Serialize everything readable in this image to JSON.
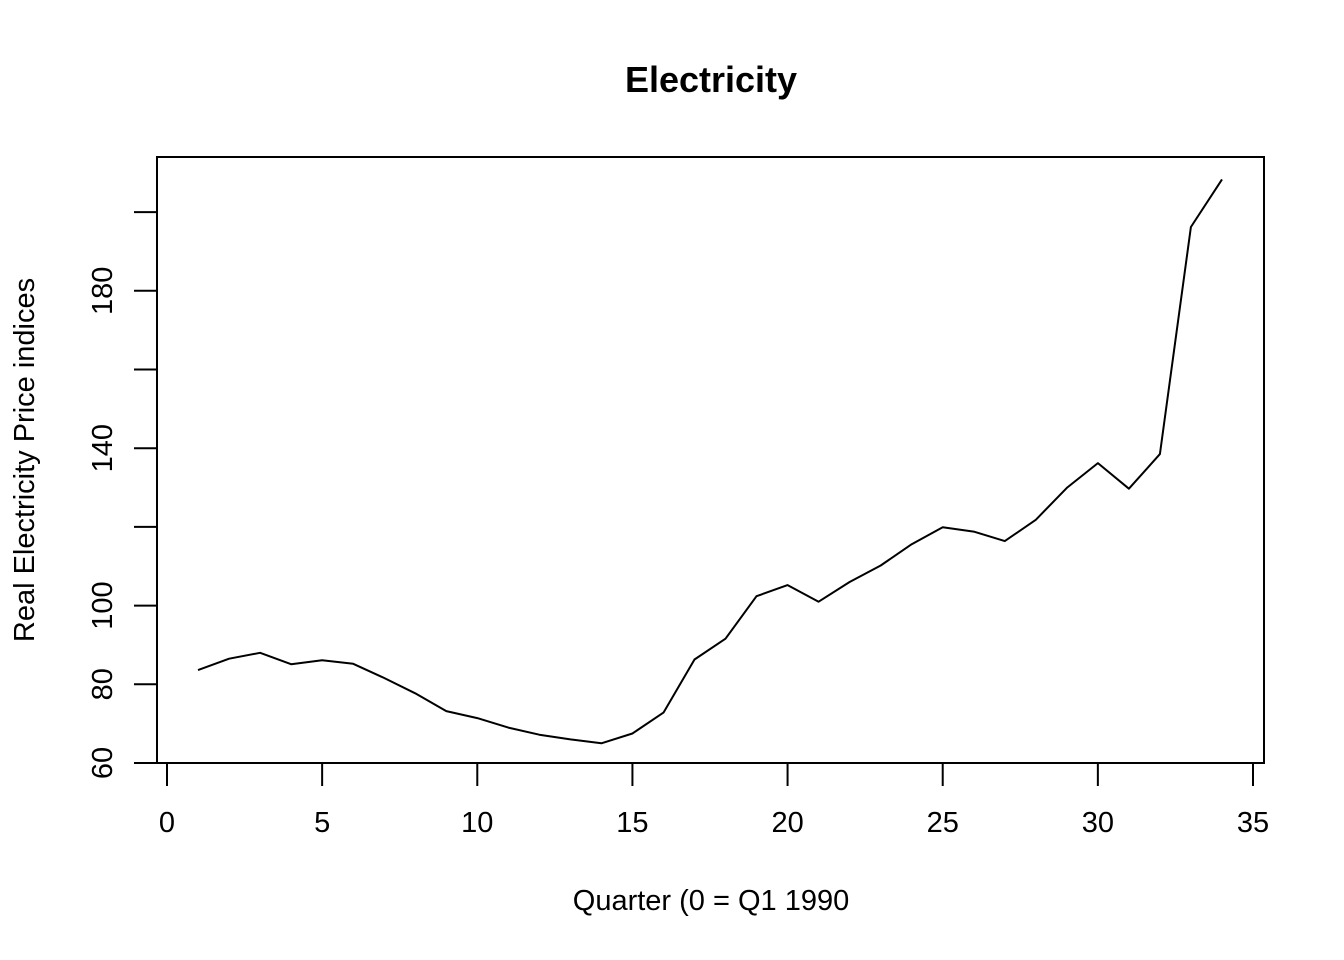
{
  "chart_data": {
    "type": "line",
    "title": "Electricity",
    "xlabel": "Quarter (0 = Q1 1990",
    "ylabel": "Real Electricity Price indices",
    "xlim": [
      0,
      35
    ],
    "ylim": [
      60,
      214
    ],
    "x_ticks": [
      0,
      5,
      10,
      15,
      20,
      25,
      30,
      35
    ],
    "y_ticks": [
      60,
      80,
      100,
      120,
      140,
      160,
      180,
      200
    ],
    "y_tick_labels": [
      "60",
      "80",
      "100",
      "",
      "140",
      "",
      "180",
      ""
    ],
    "grid": false,
    "legend": "none",
    "color": "#000000",
    "x": [
      1,
      2,
      3,
      4,
      5,
      6,
      7,
      8,
      9,
      10,
      11,
      12,
      13,
      14,
      15,
      16,
      17,
      18,
      19,
      20,
      21,
      22,
      23,
      24,
      25,
      26,
      27,
      28,
      29,
      30,
      31,
      32,
      33,
      34
    ],
    "values": [
      83.6,
      86.5,
      88.0,
      85.1,
      86.1,
      85.2,
      81.6,
      77.7,
      73.2,
      71.4,
      69.0,
      67.2,
      66.0,
      65.0,
      67.5,
      72.8,
      86.3,
      91.6,
      102.4,
      105.2,
      101.0,
      106.0,
      110.2,
      115.6,
      119.9,
      118.8,
      116.4,
      121.8,
      129.9,
      136.2,
      129.7,
      138.5,
      196.2,
      208.3
    ]
  }
}
